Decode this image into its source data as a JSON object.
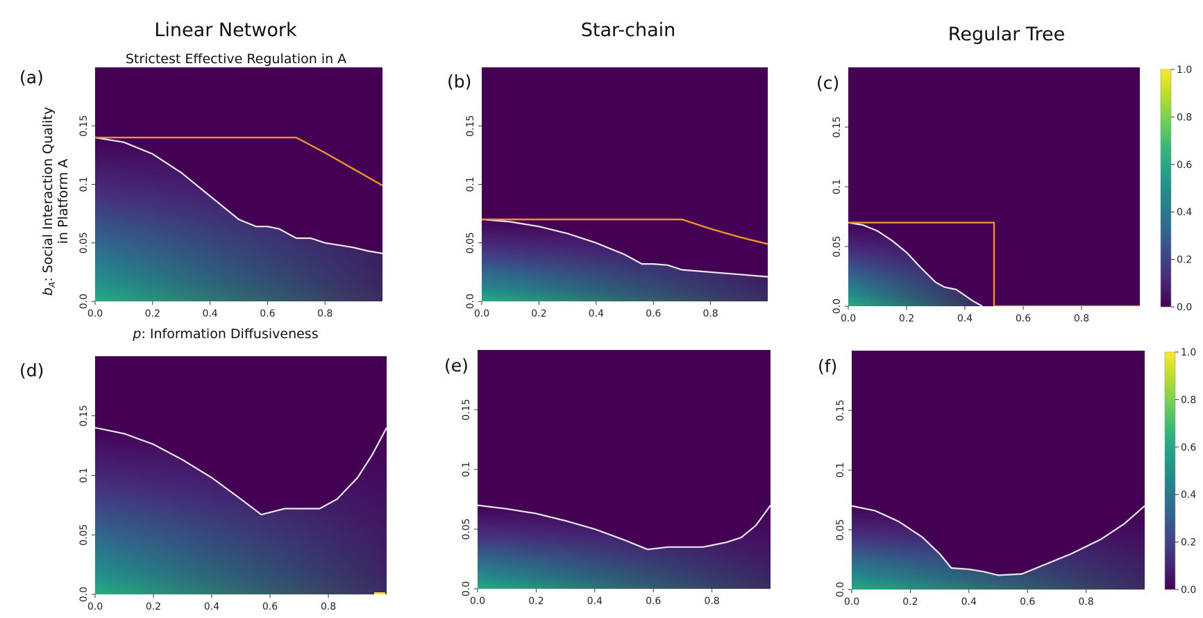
{
  "column_titles": [
    "Linear Network",
    "Star-chain",
    "Regular Tree"
  ],
  "top_row_title": "Strictest Effective Regulation in A",
  "axis_labels": {
    "x": "p: Information Diffusiveness",
    "x_var": "p",
    "x_text": ": Information Diffusiveness",
    "y_line1": "b",
    "y_sub": "A",
    "y_line1_text": ": Social Interaction Quality",
    "y_line2": "in Platform A"
  },
  "colors": {
    "background": "#440154",
    "boundary_line": "#e8e8e8",
    "regulation_line": "#f0922a",
    "viridis": [
      "#440154",
      "#482878",
      "#3e4989",
      "#31688e",
      "#26828e",
      "#1f9e89",
      "#35b779",
      "#6ece58",
      "#b5de2b",
      "#fde725"
    ]
  },
  "colorbars": [
    {
      "ticks": [
        "1.0",
        "0.8",
        "0.6",
        "0.4",
        "0.2",
        "0.0"
      ]
    },
    {
      "ticks": [
        "1.0",
        "0.8",
        "0.6",
        "0.4",
        "0.2",
        "0.0"
      ]
    }
  ],
  "chart_data": [
    {
      "panel": "(a)",
      "type": "heatmap",
      "network": "Linear Network",
      "x_ticks": [
        "0.0",
        "0.2",
        "0.4",
        "0.6",
        "0.8"
      ],
      "y_ticks": [
        "0.0",
        "0.05",
        "0.1",
        "0.15"
      ],
      "xlim": [
        0,
        1
      ],
      "ylim": [
        0,
        0.2
      ],
      "boundary": [
        [
          0,
          0.14
        ],
        [
          0.1,
          0.136
        ],
        [
          0.2,
          0.126
        ],
        [
          0.3,
          0.11
        ],
        [
          0.4,
          0.09
        ],
        [
          0.5,
          0.07
        ],
        [
          0.56,
          0.064
        ],
        [
          0.6,
          0.064
        ],
        [
          0.64,
          0.062
        ],
        [
          0.7,
          0.054
        ],
        [
          0.75,
          0.054
        ],
        [
          0.8,
          0.05
        ],
        [
          0.85,
          0.048
        ],
        [
          0.9,
          0.046
        ],
        [
          0.95,
          0.043
        ],
        [
          1.0,
          0.041
        ]
      ],
      "regulation": [
        [
          0,
          0.14
        ],
        [
          0.7,
          0.14
        ],
        [
          0.8,
          0.127
        ],
        [
          0.9,
          0.113
        ],
        [
          1.0,
          0.099
        ]
      ],
      "z_range": [
        0,
        1
      ]
    },
    {
      "panel": "(b)",
      "type": "heatmap",
      "network": "Star-chain",
      "x_ticks": [
        "0.0",
        "0.2",
        "0.4",
        "0.6",
        "0.8"
      ],
      "y_ticks": [
        "0.0",
        "0.05",
        "0.1",
        "0.15"
      ],
      "xlim": [
        0,
        1
      ],
      "ylim": [
        0,
        0.2
      ],
      "boundary": [
        [
          0,
          0.07
        ],
        [
          0.1,
          0.068
        ],
        [
          0.2,
          0.064
        ],
        [
          0.3,
          0.058
        ],
        [
          0.4,
          0.05
        ],
        [
          0.5,
          0.04
        ],
        [
          0.56,
          0.032
        ],
        [
          0.6,
          0.032
        ],
        [
          0.65,
          0.031
        ],
        [
          0.7,
          0.027
        ],
        [
          0.8,
          0.025
        ],
        [
          0.9,
          0.023
        ],
        [
          1.0,
          0.021
        ]
      ],
      "regulation": [
        [
          0,
          0.07
        ],
        [
          0.7,
          0.07
        ],
        [
          0.8,
          0.062
        ],
        [
          0.9,
          0.055
        ],
        [
          1.0,
          0.049
        ]
      ],
      "z_range": [
        0,
        1
      ]
    },
    {
      "panel": "(c)",
      "type": "heatmap",
      "network": "Regular Tree",
      "x_ticks": [
        "0.0",
        "0.2",
        "0.4",
        "0.6",
        "0.8"
      ],
      "y_ticks": [
        "0.0",
        "0.05",
        "0.1",
        "0.15"
      ],
      "xlim": [
        0,
        1
      ],
      "ylim": [
        0,
        0.2
      ],
      "boundary": [
        [
          0,
          0.07
        ],
        [
          0.05,
          0.068
        ],
        [
          0.1,
          0.063
        ],
        [
          0.15,
          0.055
        ],
        [
          0.2,
          0.045
        ],
        [
          0.25,
          0.032
        ],
        [
          0.3,
          0.02
        ],
        [
          0.33,
          0.016
        ],
        [
          0.37,
          0.014
        ],
        [
          0.4,
          0.009
        ],
        [
          0.43,
          0.004
        ],
        [
          0.46,
          0
        ]
      ],
      "regulation": [
        [
          0,
          0.07
        ],
        [
          0.5,
          0.07
        ],
        [
          0.5,
          0
        ],
        [
          1.0,
          0
        ]
      ],
      "z_range": [
        0,
        1
      ]
    },
    {
      "panel": "(d)",
      "type": "heatmap",
      "network": "Linear Network",
      "x_ticks": [
        "0.0",
        "0.2",
        "0.4",
        "0.6",
        "0.8"
      ],
      "y_ticks": [
        "0.0",
        "0.05",
        "0.1",
        "0.15"
      ],
      "xlim": [
        0,
        1
      ],
      "ylim": [
        0,
        0.2
      ],
      "boundary": [
        [
          0,
          0.14
        ],
        [
          0.1,
          0.135
        ],
        [
          0.2,
          0.126
        ],
        [
          0.3,
          0.113
        ],
        [
          0.4,
          0.098
        ],
        [
          0.5,
          0.08
        ],
        [
          0.57,
          0.067
        ],
        [
          0.65,
          0.072
        ],
        [
          0.77,
          0.072
        ],
        [
          0.83,
          0.08
        ],
        [
          0.9,
          0.098
        ],
        [
          0.95,
          0.117
        ],
        [
          1.0,
          0.14
        ]
      ],
      "regulation": [],
      "z_range": [
        0,
        1
      ]
    },
    {
      "panel": "(e)",
      "type": "heatmap",
      "network": "Star-chain",
      "x_ticks": [
        "0.0",
        "0.2",
        "0.4",
        "0.6",
        "0.8"
      ],
      "y_ticks": [
        "0.0",
        "0.05",
        "0.1",
        "0.15"
      ],
      "xlim": [
        0,
        1
      ],
      "ylim": [
        0,
        0.2
      ],
      "boundary": [
        [
          0,
          0.07
        ],
        [
          0.1,
          0.067
        ],
        [
          0.2,
          0.063
        ],
        [
          0.3,
          0.057
        ],
        [
          0.4,
          0.05
        ],
        [
          0.5,
          0.041
        ],
        [
          0.58,
          0.033
        ],
        [
          0.65,
          0.035
        ],
        [
          0.77,
          0.035
        ],
        [
          0.85,
          0.039
        ],
        [
          0.9,
          0.043
        ],
        [
          0.95,
          0.053
        ],
        [
          1.0,
          0.07
        ]
      ],
      "regulation": [],
      "z_range": [
        0,
        1
      ]
    },
    {
      "panel": "(f)",
      "type": "heatmap",
      "network": "Regular Tree",
      "x_ticks": [
        "0.0",
        "0.2",
        "0.4",
        "0.6",
        "0.8"
      ],
      "y_ticks": [
        "0.0",
        "0.05",
        "0.1",
        "0.15"
      ],
      "xlim": [
        0,
        1
      ],
      "ylim": [
        0,
        0.2
      ],
      "boundary": [
        [
          0,
          0.07
        ],
        [
          0.08,
          0.066
        ],
        [
          0.16,
          0.057
        ],
        [
          0.24,
          0.044
        ],
        [
          0.3,
          0.03
        ],
        [
          0.34,
          0.018
        ],
        [
          0.4,
          0.017
        ],
        [
          0.45,
          0.015
        ],
        [
          0.5,
          0.012
        ],
        [
          0.58,
          0.013
        ],
        [
          0.65,
          0.02
        ],
        [
          0.75,
          0.03
        ],
        [
          0.85,
          0.042
        ],
        [
          0.93,
          0.055
        ],
        [
          1.0,
          0.07
        ]
      ],
      "regulation": [],
      "z_range": [
        0,
        1
      ]
    }
  ]
}
